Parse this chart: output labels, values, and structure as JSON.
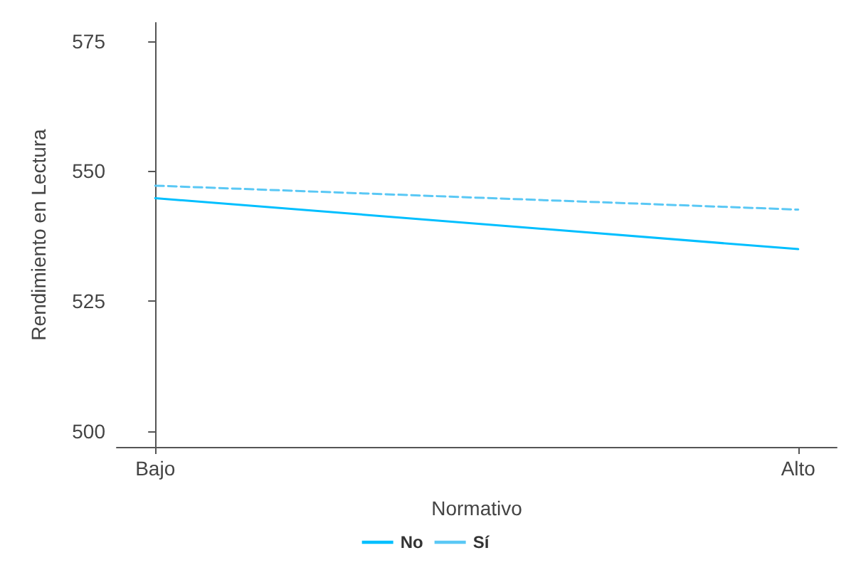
{
  "chart_data": {
    "type": "line",
    "xlabel": "Normativo",
    "ylabel": "Rendimiento en Lectura",
    "categories": [
      "Bajo",
      "Alto"
    ],
    "series": [
      {
        "name": "No",
        "color": "#00bfff",
        "values": [
          544.8,
          535.0
        ],
        "line_style": "solid"
      },
      {
        "name": "Sí",
        "color": "#5ac8f5",
        "values": [
          547.2,
          542.6
        ],
        "line_style": "dashed"
      }
    ],
    "ylim": [
      497,
      578.5
    ],
    "yticks": [
      500,
      525,
      550,
      575
    ],
    "grid": false,
    "legend": "bottom",
    "marker": "none"
  }
}
